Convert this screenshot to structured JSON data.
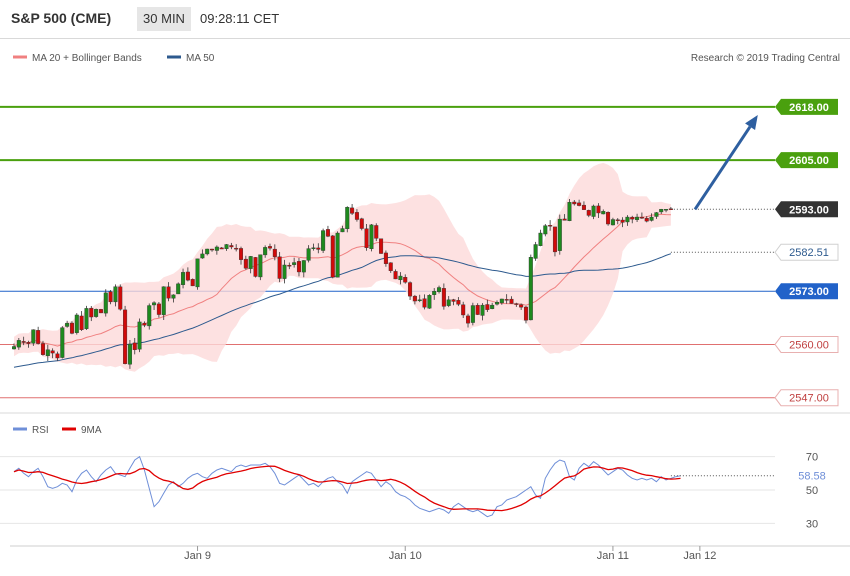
{
  "header": {
    "title": "S&P 500 (CME)",
    "timeframe": "30 MIN",
    "clock": "09:28:11 CET"
  },
  "colors": {
    "bull": "#1e8a1e",
    "bear": "#d10a0a",
    "band_fill": "#fcd9d9",
    "ma20": "#f08080",
    "ma50": "#2d5a8e",
    "level_green": "#4aa00e",
    "level_blue": "#2162c9",
    "level_red": "#e07070",
    "rsi": "#6f8fd8",
    "rsi_ma": "#e00000",
    "arrow": "#2e5fa0"
  },
  "chart_data": [
    {
      "type": "line",
      "subtype": "candlestick",
      "title": "",
      "legend": [
        "MA 20 + Bollinger Bands",
        "MA 50"
      ],
      "legend_placement": "top-left",
      "credit": "Research © 2019 Trading Central",
      "ylim": [
        2544,
        2627
      ],
      "x_labels": [
        {
          "i": 38,
          "label": "Jan 9"
        },
        {
          "i": 81,
          "label": "Jan 10"
        },
        {
          "i": 124,
          "label": "Jan 11"
        },
        {
          "i": 142,
          "label": "Jan 12"
        }
      ],
      "levels": [
        {
          "value": 2618.0,
          "label": "2618.00",
          "kind": "resistance"
        },
        {
          "value": 2605.0,
          "label": "2605.00",
          "kind": "resistance"
        },
        {
          "value": 2593.0,
          "label": "2593.00",
          "kind": "last"
        },
        {
          "value": 2582.51,
          "label": "2582.51",
          "kind": "ma50"
        },
        {
          "value": 2573.0,
          "label": "2573.00",
          "kind": "pivot"
        },
        {
          "value": 2560.0,
          "label": "2560.00",
          "kind": "support"
        },
        {
          "value": 2547.0,
          "label": "2547.00",
          "kind": "support"
        }
      ],
      "target_arrow": {
        "from": [
          141,
          2593.0
        ],
        "to": [
          154,
          2616.0
        ]
      },
      "close": [
        2559.5,
        2561,
        2560.6,
        2560.2,
        2563.6,
        2560.2,
        2557.5,
        2558.7,
        2557.9,
        2556.7,
        2564.1,
        2565.2,
        2562.7,
        2567.2,
        2563.6,
        2568.8,
        2566.7,
        2568.6,
        2567.7,
        2572.6,
        2570.4,
        2574.1,
        2568.6,
        2555.3,
        2560.1,
        2558.7,
        2565.5,
        2564.7,
        2569.5,
        2570.2,
        2567.3,
        2574.1,
        2571.3,
        2572.1,
        2574.8,
        2577.6,
        2575.7,
        2574.3,
        2580.9,
        2582.1,
        2583.3,
        2583.1,
        2583.8,
        2583.3,
        2584.4,
        2583.8,
        2583.3,
        2580.7,
        2578.6,
        2581.5,
        2576.6,
        2581.9,
        2583.7,
        2583.5,
        2581.4,
        2576.1,
        2579.4,
        2579.3,
        2580.0,
        2577.7,
        2580.5,
        2583.4,
        2583.6,
        2583.2,
        2587.8,
        2586.4,
        2576.4,
        2587.2,
        2588.3,
        2593.5,
        2592.0,
        2590.5,
        2588.3,
        2583.6,
        2589.2,
        2585.9,
        2582.2,
        2579.7,
        2578.0,
        2576.0,
        2576.7,
        2575.2,
        2571.8,
        2570.6,
        2570.9,
        2569.1,
        2572.0,
        2573.0,
        2573.9,
        2569.3,
        2570.9,
        2570.5,
        2569.8,
        2567.2,
        2565.2,
        2569.5,
        2567.3,
        2569.6,
        2568.5,
        2569.6,
        2570.3,
        2571.1,
        2571.0,
        2570.0,
        2569.8,
        2569.1,
        2565.9,
        2581.3,
        2584.4,
        2587.2,
        2589.0,
        2588.9,
        2582.6,
        2590.6,
        2590.3,
        2594.7,
        2594.3,
        2593.9,
        2592.9,
        2591.5,
        2593.8,
        2592.1,
        2592.5,
        2589.4,
        2590.5,
        2590.4,
        2589.8,
        2591.1,
        2590.6,
        2591.1,
        2590.8,
        2590.1,
        2591.1,
        2592.2,
        2593.0,
        2593.0,
        2593.0
      ],
      "rsi": {
        "title": "",
        "legend": [
          "RSI",
          "9MA"
        ],
        "ylim": [
          20,
          80
        ],
        "ticks": [
          70,
          50,
          30
        ],
        "last_value": "58.58",
        "line": [
          61,
          63,
          60,
          58,
          61,
          63,
          58,
          52,
          51,
          52,
          54,
          53,
          49,
          56,
          60,
          62,
          58,
          55,
          59,
          62,
          64,
          60,
          59,
          58,
          63,
          68,
          70,
          62,
          51,
          40,
          43,
          48,
          53,
          55,
          52,
          54,
          57,
          59,
          60,
          58,
          57,
          60,
          62,
          63,
          62,
          61,
          64,
          65,
          64,
          65,
          65,
          65,
          66,
          64,
          60,
          54,
          53,
          55,
          57,
          59,
          56,
          53,
          54,
          52,
          55,
          57,
          58,
          55,
          53,
          48,
          55,
          57,
          59,
          61,
          60,
          56,
          52,
          55,
          53,
          49,
          47,
          46,
          44,
          41,
          39,
          38,
          37,
          38,
          39,
          38,
          36,
          40,
          42,
          40,
          38,
          37,
          38,
          36,
          34,
          35,
          40,
          41,
          44,
          45,
          46,
          48,
          50,
          52,
          47,
          45,
          57,
          62,
          66,
          68,
          67,
          58,
          56,
          63,
          66,
          64,
          67,
          65,
          62,
          59,
          61,
          63,
          62,
          59,
          57,
          56,
          57,
          56,
          57,
          55,
          58,
          56,
          57,
          58,
          58.6
        ]
      }
    }
  ]
}
